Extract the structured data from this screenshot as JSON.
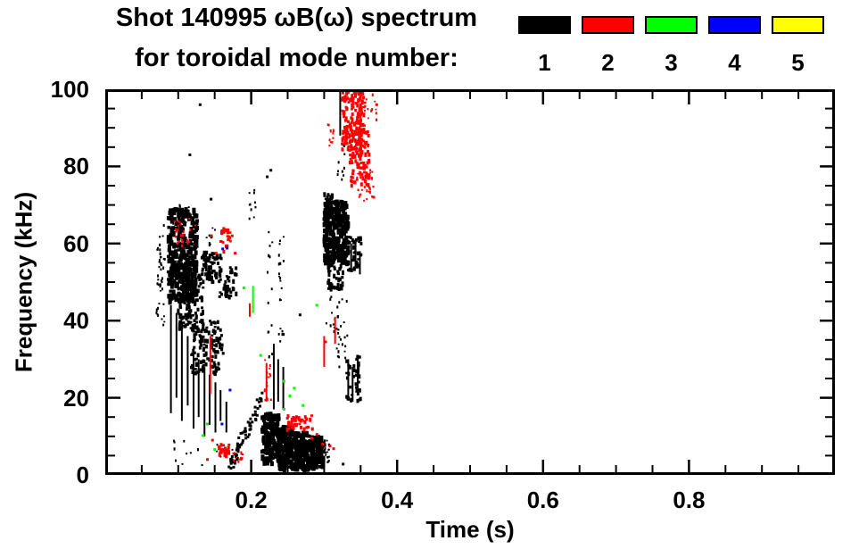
{
  "title": {
    "line1": "Shot 140995 ωB(ω) spectrum",
    "line2": "for toroidal mode number:"
  },
  "chart_data": {
    "type": "scatter",
    "title": "Shot 140995 ωB(ω) spectrum for toroidal mode number: 1 2 3 4 5",
    "xlabel": "Time (s)",
    "ylabel": "Frequency (kHz)",
    "xlim": [
      0,
      1
    ],
    "ylim": [
      0,
      100
    ],
    "grid": false,
    "x_ticks": [
      0.2,
      0.4,
      0.6,
      0.8
    ],
    "x_tick_labels": [
      "0.2",
      "0.4",
      "0.6",
      "0.8"
    ],
    "x_minor_step": 0.05,
    "y_ticks": [
      0,
      20,
      40,
      60,
      80,
      100
    ],
    "y_tick_labels": [
      "0",
      "20",
      "40",
      "60",
      "80",
      "100"
    ],
    "y_minor_step": 5,
    "legend_position": "top-right",
    "legend": [
      {
        "label": "1",
        "color": "#000000"
      },
      {
        "label": "2",
        "color": "#ff0000"
      },
      {
        "label": "3",
        "color": "#00ff00"
      },
      {
        "label": "4",
        "color": "#0000ff"
      },
      {
        "label": "5",
        "color": "#ffff00"
      }
    ],
    "series": [
      {
        "name": "mode 1",
        "color": "#000000",
        "clouds": [
          [
            0.07,
            0.082,
            38,
            66,
            45,
            2
          ],
          [
            0.086,
            0.126,
            45,
            69,
            320,
            4
          ],
          [
            0.1,
            0.135,
            38,
            52,
            150,
            3
          ],
          [
            0.118,
            0.162,
            26,
            40,
            130,
            3
          ],
          [
            0.132,
            0.162,
            50,
            58,
            70,
            3
          ],
          [
            0.152,
            0.18,
            46,
            54,
            45,
            3
          ],
          [
            0.09,
            0.12,
            65,
            70,
            12,
            2
          ],
          [
            0.138,
            0.152,
            58,
            64,
            10,
            2
          ],
          [
            0.09,
            0.175,
            2,
            9,
            14,
            2
          ],
          [
            0.222,
            0.229,
            30,
            64,
            14,
            2
          ],
          [
            0.238,
            0.246,
            33,
            72,
            20,
            2
          ],
          [
            0.196,
            0.214,
            66,
            74,
            10,
            2
          ],
          [
            0.215,
            0.238,
            3,
            16,
            150,
            4
          ],
          [
            0.238,
            0.26,
            1.5,
            12.5,
            150,
            4
          ],
          [
            0.26,
            0.28,
            1.5,
            11,
            130,
            4
          ],
          [
            0.28,
            0.299,
            2,
            10,
            100,
            4
          ],
          [
            0.299,
            0.308,
            3,
            9,
            25,
            2
          ],
          [
            0.3,
            0.333,
            55,
            71,
            260,
            4
          ],
          [
            0.305,
            0.326,
            48,
            57,
            60,
            3
          ],
          [
            0.3,
            0.312,
            66,
            73,
            40,
            3
          ],
          [
            0.3,
            0.332,
            33,
            47,
            22,
            2
          ],
          [
            0.316,
            0.33,
            28,
            38,
            12,
            2
          ],
          [
            0.318,
            0.328,
            76,
            88,
            12,
            2
          ],
          [
            0.33,
            0.35,
            19,
            31,
            40,
            3
          ],
          [
            0.33,
            0.352,
            53,
            62,
            40,
            3
          ]
        ],
        "vlines": [
          [
            0.09,
            16,
            44,
            2
          ],
          [
            0.0976,
            20,
            42,
            2
          ],
          [
            0.105,
            14,
            38,
            2
          ],
          [
            0.113,
            18,
            36,
            2
          ],
          [
            0.121,
            12,
            33,
            2
          ],
          [
            0.128,
            15,
            30,
            2
          ],
          [
            0.136,
            10,
            28,
            2
          ],
          [
            0.143,
            13,
            26,
            2
          ],
          [
            0.151,
            11,
            24,
            2
          ],
          [
            0.158,
            14,
            22,
            2
          ],
          [
            0.166,
            11,
            19,
            2
          ],
          [
            0.231,
            17,
            34,
            2
          ],
          [
            0.237,
            19,
            30,
            2
          ],
          [
            0.244,
            17,
            28,
            2
          ],
          [
            0.322,
            88,
            100,
            2
          ],
          [
            0.337,
            53,
            60,
            2
          ],
          [
            0.343,
            54,
            61,
            2
          ],
          [
            0.349,
            52,
            58,
            2
          ],
          [
            0.333,
            20,
            30,
            2
          ],
          [
            0.339,
            19,
            28,
            2
          ],
          [
            0.346,
            21,
            31,
            2
          ]
        ],
        "diags": [
          [
            0.172,
            2.5,
            0.215,
            20,
            70,
            3
          ]
        ],
        "dots": [
          [
            0.13,
            96
          ],
          [
            0.116,
            83
          ],
          [
            0.145,
            71.5
          ],
          [
            0.222,
            77.3
          ],
          [
            0.227,
            79
          ],
          [
            0.326,
            2.8
          ],
          [
            0.267,
            41.5
          ]
        ]
      },
      {
        "name": "mode 2",
        "color": "#ff0000",
        "clouds": [
          [
            0.095,
            0.126,
            59,
            67,
            26,
            2
          ],
          [
            0.158,
            0.172,
            58,
            64,
            22,
            3
          ],
          [
            0.218,
            0.228,
            18,
            30,
            16,
            2
          ],
          [
            0.248,
            0.285,
            12,
            15.5,
            40,
            3
          ],
          [
            0.155,
            0.173,
            5,
            8,
            26,
            3
          ],
          [
            0.174,
            0.19,
            3.5,
            6,
            12,
            2
          ],
          [
            0.325,
            0.356,
            84,
            100,
            150,
            3
          ],
          [
            0.335,
            0.362,
            75,
            90,
            90,
            3
          ],
          [
            0.345,
            0.368,
            71,
            80,
            25,
            2
          ],
          [
            0.354,
            0.374,
            92,
            100,
            16,
            2
          ],
          [
            0.3,
            0.313,
            85,
            91,
            10,
            2
          ]
        ],
        "vlines": [
          [
            0.144,
            21,
            36,
            2
          ],
          [
            0.198,
            41,
            44.5,
            2
          ],
          [
            0.221,
            19,
            29,
            2
          ],
          [
            0.3,
            28,
            36,
            2
          ],
          [
            0.315,
            34,
            41,
            2
          ]
        ],
        "diags": [],
        "dots": [
          [
            0.145,
            62
          ],
          [
            0.152,
            57.5
          ],
          [
            0.174,
            62
          ],
          [
            0.178,
            57.5
          ],
          [
            0.147,
            9
          ],
          [
            0.14,
            4
          ],
          [
            0.283,
            9.5
          ],
          [
            0.29,
            10.5
          ],
          [
            0.298,
            8
          ],
          [
            0.308,
            7.5
          ],
          [
            0.313,
            6.8
          ],
          [
            0.368,
            72
          ],
          [
            0.372,
            96
          ],
          [
            0.302,
            34.5
          ]
        ]
      },
      {
        "name": "mode 3",
        "color": "#00ff00",
        "clouds": [],
        "vlines": [
          [
            0.2025,
            42,
            49,
            2
          ]
        ],
        "diags": [],
        "dots": [
          [
            0.19,
            48.5
          ],
          [
            0.213,
            31
          ],
          [
            0.245,
            24.3
          ],
          [
            0.259,
            22.5
          ],
          [
            0.245,
            17
          ],
          [
            0.271,
            18
          ],
          [
            0.253,
            20.5
          ],
          [
            0.14,
            13.2
          ],
          [
            0.134,
            10.2
          ],
          [
            0.15,
            6.6
          ],
          [
            0.29,
            44
          ],
          [
            0.341,
            100
          ]
        ]
      },
      {
        "name": "mode 4",
        "color": "#0000ff",
        "clouds": [],
        "vlines": [],
        "diags": [],
        "dots": [
          [
            0.161,
            58.6
          ],
          [
            0.167,
            58.8
          ],
          [
            0.171,
            22
          ],
          [
            0.16,
            13.2
          ]
        ]
      },
      {
        "name": "mode 5",
        "color": "#ffff00",
        "clouds": [],
        "vlines": [],
        "diags": [],
        "dots": []
      }
    ]
  }
}
